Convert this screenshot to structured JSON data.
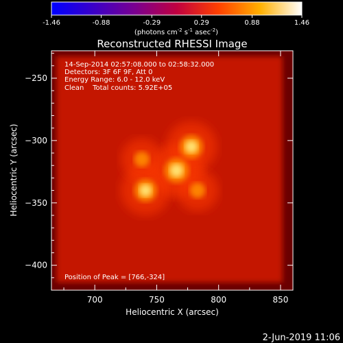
{
  "chart_data": {
    "type": "heatmap",
    "title": "Reconstructed RHESSI Image",
    "colorbar": {
      "ticks": [
        "-1.46",
        "-0.88",
        "-0.29",
        "0.29",
        "0.88",
        "1.46"
      ],
      "label": "(photons cm",
      "label_exp1": "-2",
      "label_mid": " s",
      "label_exp2": "-1",
      "label_tail": " asec",
      "label_exp3": "-2",
      "label_close": ")",
      "range": [
        -1.46,
        1.46
      ]
    },
    "xlabel": "Heliocentric X (arcsec)",
    "ylabel": "Heliocentric Y (arcsec)",
    "xlim": [
      665,
      860
    ],
    "ylim": [
      -420,
      -228
    ],
    "x_ticks": [
      700,
      750,
      800,
      850
    ],
    "y_ticks": [
      -250,
      -300,
      -350,
      -400
    ],
    "annotations": {
      "line1": "14-Sep-2014 02:57:08.000 to 02:58:32.000",
      "line2": "Detectors: 3F 6F 9F, Att 0",
      "line3": "Energy Range: 6.0 - 12.0 keV",
      "line4": "Clean    Total counts: 5.92E+05",
      "peak": "Position of Peak = [766,-324]"
    },
    "sources": [
      {
        "x": 766,
        "y": -324,
        "intensity": 1.0
      },
      {
        "x": 778,
        "y": -305,
        "intensity": 0.92
      },
      {
        "x": 741,
        "y": -340,
        "intensity": 0.88
      },
      {
        "x": 738,
        "y": -315,
        "intensity": 0.45
      },
      {
        "x": 783,
        "y": -340,
        "intensity": 0.45
      }
    ],
    "colormap_colors": [
      "#0000ff",
      "#3a00c8",
      "#7a0090",
      "#c00040",
      "#ff4000",
      "#ffb000",
      "#ffffff"
    ]
  },
  "footer": {
    "date": "2-Jun-2019 11:06"
  }
}
